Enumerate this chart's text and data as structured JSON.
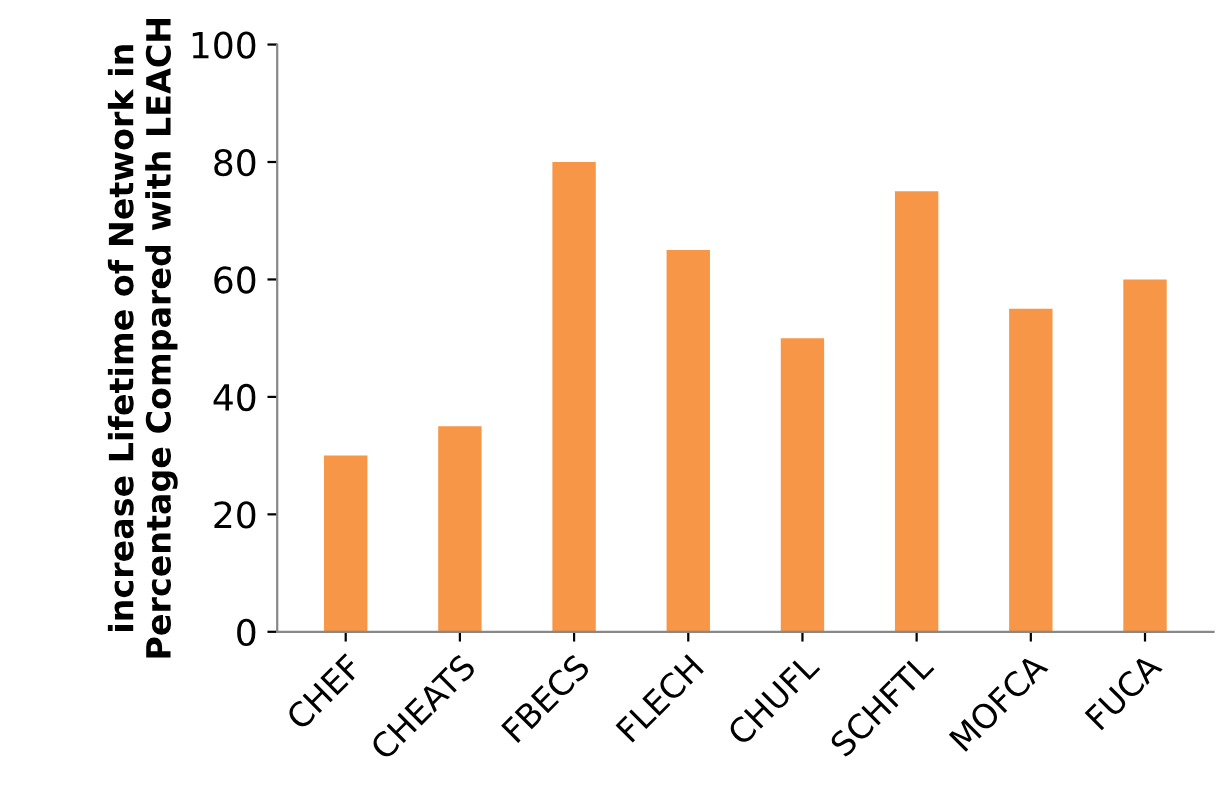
{
  "chart_data": {
    "type": "bar",
    "ylabel": "increase Lifetime of Network in\nPercentage Compared with LEACH",
    "categories": [
      "CHEF",
      "CHEATS",
      "FBECS",
      "FLECH",
      "CHUFL",
      "SCHFTL",
      "MOFCA",
      "FUCA"
    ],
    "values": [
      30,
      35,
      80,
      65,
      50,
      75,
      55,
      60
    ],
    "color": "#f79646",
    "ylim": [
      0,
      100
    ],
    "yticks": [
      0,
      20,
      40,
      60,
      80,
      100
    ],
    "grid": false,
    "legend": false
  }
}
